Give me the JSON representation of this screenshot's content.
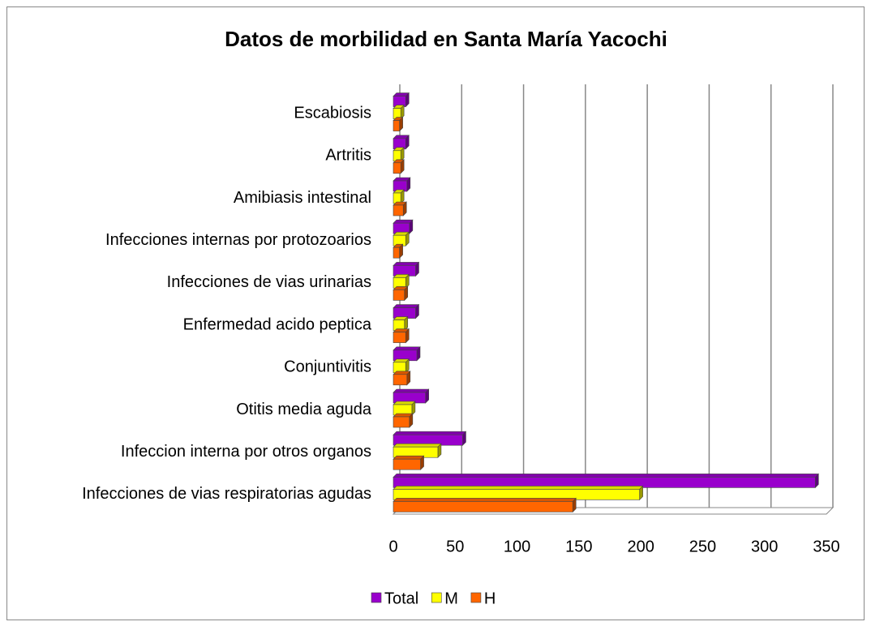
{
  "chart_data": {
    "type": "bar",
    "orientation": "horizontal",
    "title": "Datos de morbilidad en Santa María Yacochi",
    "categories": [
      "Infecciones de vias respiratorias agudas",
      "Infeccion interna por otros organos",
      "Otitis media aguda",
      "Conjuntivitis",
      "Enfermedad acido peptica",
      "Infecciones de vias urinarias",
      "Infecciones internas por protozoarios",
      "Amibiasis intestinal",
      "Artritis",
      "Escabiosis"
    ],
    "series": [
      {
        "name": "Total",
        "color": "#9900cc",
        "values": [
          341,
          56,
          26,
          19,
          18,
          18,
          13,
          11,
          10,
          10
        ]
      },
      {
        "name": "M",
        "color": "#ffff00",
        "values": [
          199,
          36,
          15,
          10,
          9,
          10,
          10,
          6,
          6,
          6
        ]
      },
      {
        "name": "H",
        "color": "#ff6600",
        "values": [
          145,
          22,
          13,
          11,
          10,
          9,
          5,
          8,
          6,
          5
        ]
      }
    ],
    "xlim": [
      0,
      350
    ],
    "xticks": [
      0,
      50,
      100,
      150,
      200,
      250,
      300,
      350
    ],
    "grid": true,
    "legend": "bottom"
  }
}
